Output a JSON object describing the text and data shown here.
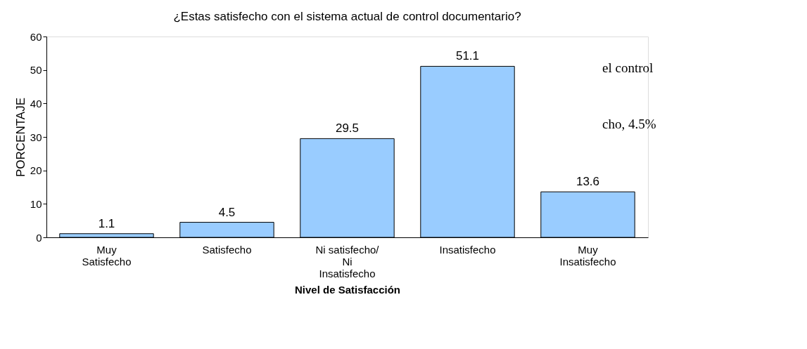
{
  "chart_data": {
    "type": "bar",
    "title": "¿Estas satisfecho con el sistema actual de control documentario?",
    "xlabel": "Nivel de Satisfacción",
    "ylabel": "PORCENTAJE",
    "categories": [
      "Muy\nSatisfecho",
      "Satisfecho",
      "Ni satisfecho/\nNi\nInsatisfecho",
      "Insatisfecho",
      "Muy\nInsatisfecho"
    ],
    "values": [
      1.1,
      4.5,
      29.5,
      51.1,
      13.6
    ],
    "color": "#99ccff",
    "ylim": [
      0,
      60
    ],
    "yticks": [
      0,
      10,
      20,
      30,
      40,
      50,
      60
    ],
    "grid": false,
    "data_labels": true,
    "annotations": [
      "el control",
      "cho, 4.5%"
    ]
  }
}
